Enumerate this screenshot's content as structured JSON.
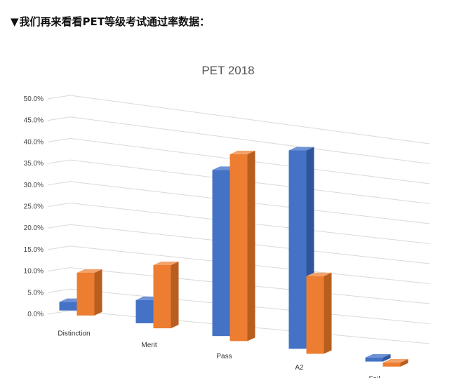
{
  "header": {
    "marker": "▼",
    "text": "我们再来看看PET等级考试通过率数据："
  },
  "chart_data": {
    "type": "bar",
    "title": "PET 2018",
    "categories": [
      "Distinction",
      "Merit",
      "Pass",
      "A2",
      "Fail"
    ],
    "series": [
      {
        "values": [
          2.0,
          5.5,
          40.0,
          48.5,
          1.0
        ]
      },
      {
        "values": [
          10.0,
          15.0,
          45.0,
          19.0,
          1.0
        ]
      }
    ],
    "y_ticks": [
      "0.0%",
      "5.0%",
      "10.0%",
      "15.0%",
      "20.0%",
      "25.0%",
      "30.0%",
      "35.0%",
      "40.0%",
      "45.0%",
      "50.0%"
    ],
    "ylim": [
      0,
      50
    ],
    "grid": true,
    "legend": "none",
    "style": "3d-clustered-column",
    "colors": [
      "#4472c4",
      "#ed7d31"
    ]
  }
}
